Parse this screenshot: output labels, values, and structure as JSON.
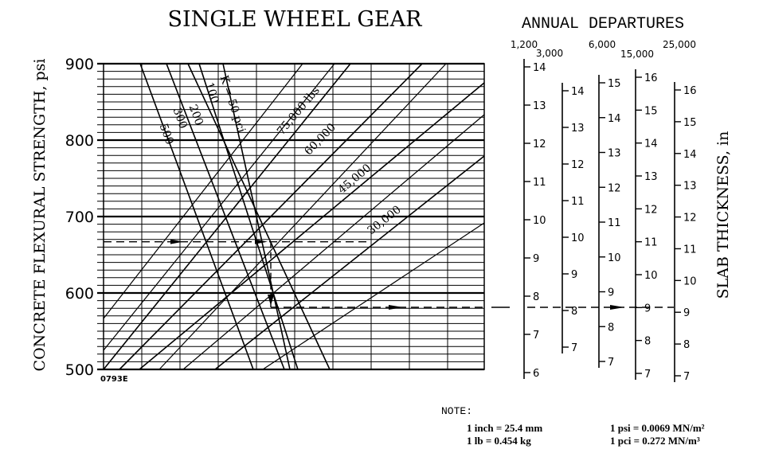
{
  "chart_data": {
    "type": "nomograph",
    "title": "SINGLE WHEEL GEAR",
    "ylabel_left": "CONCRETE FLEXURAL STRENGTH, psi",
    "ylabel_right": "SLAB THICKNESS, in",
    "figure_code": "0793E",
    "y_axis": {
      "min": 500,
      "max": 900,
      "ticks": [
        {
          "value": 500,
          "label": "500"
        },
        {
          "value": 600,
          "label": "600"
        },
        {
          "value": 700,
          "label": "700"
        },
        {
          "value": 800,
          "label": "800"
        },
        {
          "value": 900,
          "label": "900"
        }
      ]
    },
    "subgrade_modulus_curves": [
      {
        "label": "500"
      },
      {
        "label": "300"
      },
      {
        "label": "200"
      },
      {
        "label": "100"
      },
      {
        "label": "K = 50 pci"
      }
    ],
    "gear_load_curves": [
      {
        "label": "75,000 lbs"
      },
      {
        "label": "60,000"
      },
      {
        "label": "45,000"
      },
      {
        "label": "30,000"
      }
    ],
    "annual_departures": {
      "title": "ANNUAL DEPARTURES",
      "scales": [
        {
          "departures": "1,200",
          "ticks": [
            14,
            13,
            12,
            11,
            10,
            9,
            8,
            7,
            6
          ]
        },
        {
          "departures": "3,000",
          "ticks": [
            14,
            13,
            12,
            11,
            10,
            9,
            8,
            7
          ]
        },
        {
          "departures": "6,000",
          "ticks": [
            15,
            14,
            13,
            12,
            11,
            10,
            9,
            8,
            7
          ]
        },
        {
          "departures": "15,000",
          "ticks": [
            16,
            15,
            14,
            13,
            12,
            11,
            10,
            9,
            8,
            7
          ]
        },
        {
          "departures": "25,000",
          "ticks": [
            16,
            15,
            14,
            13,
            12,
            11,
            10,
            9,
            8,
            7
          ]
        }
      ]
    },
    "example_flexural_strength": 667,
    "example_slab_thickness": 9
  },
  "note": {
    "label": "NOTE:",
    "lines": [
      {
        "left": "1 inch = 25.4 mm",
        "right": "1 psi = 0.0069 MN/m²"
      },
      {
        "left": "1 lb = 0.454 kg",
        "right": "1 pci = 0.272 MN/m³"
      }
    ]
  }
}
